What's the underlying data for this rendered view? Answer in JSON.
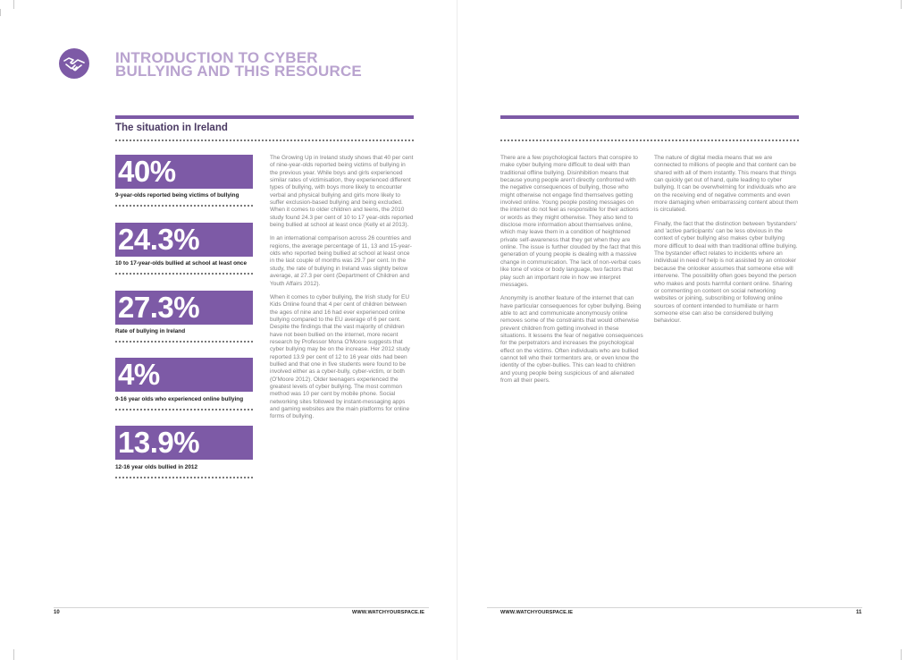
{
  "page": {
    "title_line1": "INTRODUCTION TO CYBER",
    "title_line2": "BULLYING AND THIS RESOURCE",
    "section_heading": "The situation in Ireland"
  },
  "stats": [
    {
      "value": "40%",
      "label": "9-year-olds reported being victims of bullying"
    },
    {
      "value": "24.3%",
      "label": "10 to 17-year-olds bullied at school at least once"
    },
    {
      "value": "27.3%",
      "label": "Rate of bullying in Ireland"
    },
    {
      "value": "4%",
      "label": "9-16 year olds who experienced online bullying"
    },
    {
      "value": "13.9%",
      "label": "12-16 year olds bullied in 2012"
    }
  ],
  "column1": [
    "The Growing Up in Ireland study shows that 40 per cent of nine-year-olds reported being victims of bullying in the previous year. While boys and girls experienced similar rates of victimisation, they experienced different types of bullying, with boys more likely to encounter verbal and physical bullying and girls more likely to suffer exclusion-based bullying and being excluded. When it comes to older children and teens, the 2010 study found 24.3 per cent of 10 to 17 year-olds reported being bullied at school at least once (Kelly et al 2013).",
    "In an international comparison across 26 countries and regions, the average percentage of 11, 13 and 15-year-olds who reported being bullied at school at least once in the last couple of months was 29.7 per cent. In the study, the rate of bullying in Ireland was slightly below average, at 27.3 per cent (Department of Children and Youth Affairs 2012).",
    "When it comes to cyber bullying, the Irish study for EU Kids Online found that 4 per cent of children between the ages of nine and 16 had ever experienced online bullying compared to the EU average of 6 per cent. Despite the findings that the vast majority of children have not been bullied on the internet, more recent research by Professor Mona O'Moore suggests that cyber bullying may be on the increase. Her 2012 study reported 13.9 per cent of 12 to 16 year olds had been bullied and that one in five students were found to be involved either as a cyber-bully, cyber-victim, or both (O'Moore 2012). Older teenagers experienced the greatest levels of cyber bullying. The most common method was 10 per cent by mobile phone. Social networking sites followed by instant-messaging apps and gaming websites are the main platforms for online forms of bullying."
  ],
  "column2": [
    "There are a few psychological factors that conspire to make cyber bullying more difficult to deal with than traditional offline bullying. Disinhibition means that because young people aren't directly confronted with the negative consequences of bullying, those who might otherwise not engage find themselves getting involved online. Young people posting messages on the internet do not feel as responsible for their actions or words as they might otherwise. They also tend to disclose more information about themselves online, which may leave them in a condition of heightened private self-awareness that they get when they are online. The issue is further clouded by the fact that this generation of young people is dealing with a massive change in communication. The lack of non-verbal cues like tone of voice or body language, two factors that play such an important role in how we interpret messages.",
    "Anonymity is another feature of the internet that can have particular consequences for cyber bullying. Being able to act and communicate anonymously online removes some of the constraints that would otherwise prevent children from getting involved in these situations. It lessens the fear of negative consequences for the perpetrators and increases the psychological effect on the victims. Often individuals who are bullied cannot tell who their tormentors are, or even know the identity of the cyber-bullies. This can lead to children and young people being suspicious of and alienated from all their peers."
  ],
  "column3": [
    "The nature of digital media means that we are connected to millions of people and that content can be shared with all of them instantly. This means that things can quickly get out of hand, quite leading to cyber bullying. It can be overwhelming for individuals who are on the receiving end of negative comments and even more damaging when embarrassing content about them is circulated.",
    "Finally, the fact that the distinction between 'bystanders' and 'active participants' can be less obvious in the context of cyber bullying also makes cyber bullying more difficult to deal with than traditional offline bullying. The bystander effect relates to incidents where an individual in need of help is not assisted by an onlooker because the onlooker assumes that someone else will intervene. The possibility often goes beyond the person who makes and posts harmful content online. Sharing or commenting on content on social networking websites or joining, subscribing or following online sources of content intended to humiliate or harm someone else can also be considered bullying behaviour."
  ],
  "footer": {
    "left_page_number": "10",
    "left_url": "WWW.WATCHYOURSPACE.IE",
    "right_url": "WWW.WATCHYOURSPACE.IE",
    "right_page_number": "11"
  },
  "icons": {
    "logo": "handshake-icon"
  },
  "colors": {
    "accent": "#7d5aa6",
    "title": "#b9a3cf",
    "heading": "#4b3a63"
  }
}
